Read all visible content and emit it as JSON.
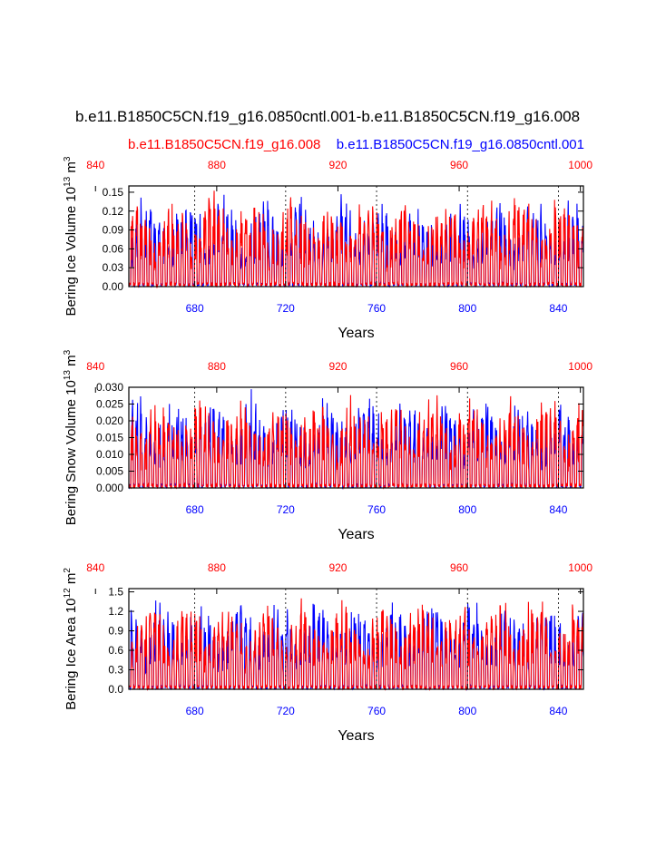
{
  "title": "b.e11.B1850C5CN.f19_g16.0850cntl.001-b.e11.B1850C5CN.f19_g16.008",
  "legend": {
    "red": "b.e11.B1850C5CN.f19_g16.008",
    "blue": "b.e11.B1850C5CN.f19_g16.0850cntl.001"
  },
  "colors": {
    "series_a": "#ff0000",
    "series_b": "#0000ff",
    "axis": "#000000"
  },
  "chart_data": [
    {
      "type": "line",
      "ylabel_main": "Bering Ice Volume 10",
      "ylabel_exp": "13",
      "ylabel_unit": " m",
      "ylabel_unitexp": "3",
      "xlabel": "Years",
      "ylim": [
        0,
        0.16
      ],
      "yticks": [
        "0.00",
        "0.03",
        "0.06",
        "0.09",
        "0.12",
        "0.15"
      ],
      "ytick_values": [
        0,
        0.03,
        0.06,
        0.09,
        0.12,
        0.15
      ],
      "bottom_xlim": [
        651,
        851
      ],
      "bottom_xticks": [
        "680",
        "720",
        "760",
        "800",
        "840"
      ],
      "top_xlim": [
        851,
        1001
      ],
      "top_xticks": [
        "840",
        "880",
        "920",
        "960",
        "1000"
      ],
      "grid_x": "dashed vertical lines at bottom ticks",
      "series": [
        {
          "name": "b.e11.B1850C5CN.f19_g16.0850cntl.001",
          "color": "blue",
          "envelope_max": 0.155
        },
        {
          "name": "b.e11.B1850C5CN.f19_g16.008",
          "color": "red",
          "envelope_max": 0.16
        }
      ]
    },
    {
      "type": "line",
      "ylabel_main": "Bering Snow Volume 10",
      "ylabel_exp": "13",
      "ylabel_unit": " m",
      "ylabel_unitexp": "3",
      "xlabel": "Years",
      "ylim": [
        0,
        0.03
      ],
      "yticks": [
        "0.000",
        "0.005",
        "0.010",
        "0.015",
        "0.020",
        "0.025",
        "0.030"
      ],
      "ytick_values": [
        0,
        0.005,
        0.01,
        0.015,
        0.02,
        0.025,
        0.03
      ],
      "bottom_xlim": [
        651,
        851
      ],
      "bottom_xticks": [
        "680",
        "720",
        "760",
        "800",
        "840"
      ],
      "top_xlim": [
        851,
        1001
      ],
      "top_xticks": [
        "840",
        "880",
        "920",
        "960",
        "1000"
      ],
      "grid_x": "dashed vertical lines at bottom ticks",
      "series": [
        {
          "name": "b.e11.B1850C5CN.f19_g16.0850cntl.001",
          "color": "blue",
          "envelope_max": 0.03
        },
        {
          "name": "b.e11.B1850C5CN.f19_g16.008",
          "color": "red",
          "envelope_max": 0.03
        }
      ]
    },
    {
      "type": "line",
      "ylabel_main": "Bering Ice Area 10",
      "ylabel_exp": "12",
      "ylabel_unit": " m",
      "ylabel_unitexp": "2",
      "xlabel": "Years",
      "ylim": [
        0,
        1.55
      ],
      "yticks": [
        "0.0",
        "0.3",
        "0.6",
        "0.9",
        "1.2",
        "1.5"
      ],
      "ytick_values": [
        0,
        0.3,
        0.6,
        0.9,
        1.2,
        1.5
      ],
      "bottom_xlim": [
        651,
        851
      ],
      "bottom_xticks": [
        "680",
        "720",
        "760",
        "800",
        "840"
      ],
      "top_xlim": [
        851,
        1001
      ],
      "top_xticks": [
        "840",
        "880",
        "920",
        "960",
        "1000"
      ],
      "grid_x": "dashed vertical lines at bottom ticks",
      "series": [
        {
          "name": "b.e11.B1850C5CN.f19_g16.0850cntl.001",
          "color": "blue",
          "envelope_max": 1.52
        },
        {
          "name": "b.e11.B1850C5CN.f19_g16.008",
          "color": "red",
          "envelope_max": 1.5
        }
      ]
    }
  ]
}
